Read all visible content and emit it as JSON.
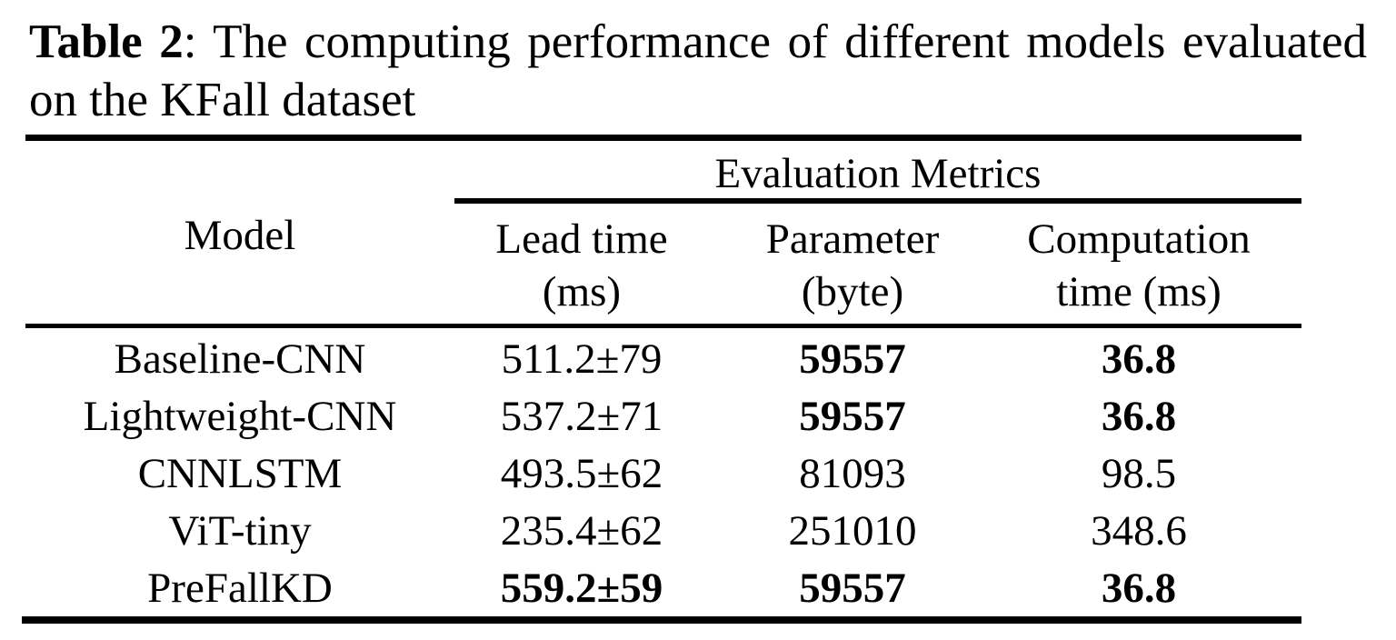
{
  "caption": {
    "label": "Table 2",
    "text": ": The computing performance of different models evaluated on the KFall dataset"
  },
  "table": {
    "group_header": "Evaluation Metrics",
    "columns": {
      "model": "Model",
      "lead_time": [
        "Lead time",
        "(ms)"
      ],
      "parameter": [
        "Parameter",
        "(byte)"
      ],
      "computation": [
        "Computation",
        "time (ms)"
      ]
    },
    "rows": [
      {
        "model": "Baseline-CNN",
        "lead_time": "511.2±79",
        "parameter": "59557",
        "computation": "36.8"
      },
      {
        "model": "Lightweight-CNN",
        "lead_time": "537.2±71",
        "parameter": "59557",
        "computation": "36.8"
      },
      {
        "model": "CNNLSTM",
        "lead_time": "493.5±62",
        "parameter": "81093",
        "computation": "98.5"
      },
      {
        "model": "ViT-tiny",
        "lead_time": "235.4±62",
        "parameter": "251010",
        "computation": "348.6"
      },
      {
        "model": "PreFallKD",
        "lead_time": "559.2±59",
        "parameter": "59557",
        "computation": "36.8"
      }
    ]
  }
}
